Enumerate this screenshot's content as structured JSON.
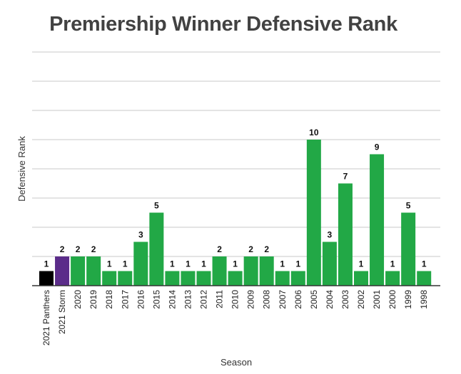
{
  "chart_data": {
    "type": "bar",
    "title": "Premiership Winner Defensive Rank",
    "xlabel": "Season",
    "ylabel": "Defensive Rank",
    "categories": [
      "2021 Panthers",
      "2021 Storm",
      "2020",
      "2019",
      "2018",
      "2017",
      "2016",
      "2015",
      "2014",
      "2013",
      "2012",
      "2011",
      "2010",
      "2009",
      "2008",
      "2007",
      "2006",
      "2005",
      "2004",
      "2003",
      "2002",
      "2001",
      "2000",
      "1999",
      "1998"
    ],
    "values": [
      1,
      2,
      2,
      2,
      1,
      1,
      3,
      5,
      1,
      1,
      1,
      2,
      1,
      2,
      2,
      1,
      1,
      10,
      3,
      7,
      1,
      9,
      1,
      5,
      1
    ],
    "bar_colors": [
      "#000000",
      "#5b2c8a",
      "#22a846",
      "#22a846",
      "#22a846",
      "#22a846",
      "#22a846",
      "#22a846",
      "#22a846",
      "#22a846",
      "#22a846",
      "#22a846",
      "#22a846",
      "#22a846",
      "#22a846",
      "#22a846",
      "#22a846",
      "#22a846",
      "#22a846",
      "#22a846",
      "#22a846",
      "#22a846",
      "#22a846",
      "#22a846",
      "#22a846"
    ],
    "ylim": [
      0,
      16
    ],
    "gridlines_step": 2,
    "grid": true,
    "legend": "none",
    "data_labels": true
  }
}
